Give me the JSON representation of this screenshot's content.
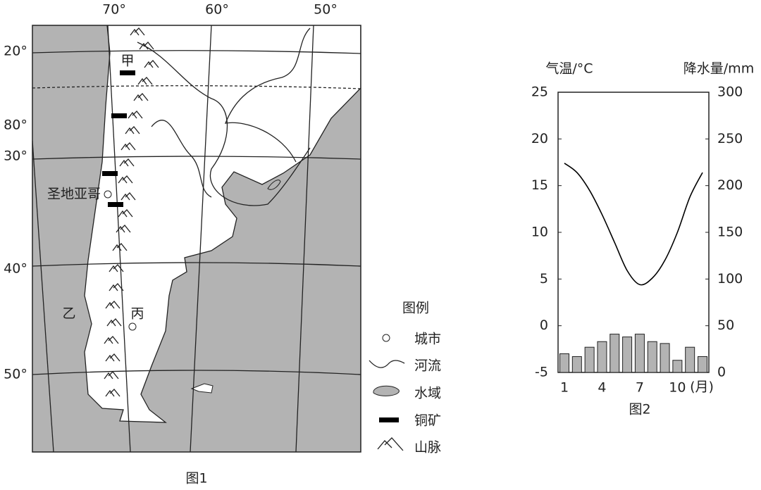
{
  "map": {
    "longitudes": [
      "70°",
      "60°",
      "50°"
    ],
    "latitudes": [
      "20°",
      "80°",
      "30°",
      "40°",
      "50°"
    ],
    "places": {
      "jia": "甲",
      "yi": "乙",
      "bing": "丙",
      "santiago": "圣地亚哥"
    },
    "legend": {
      "title": "图例",
      "items": [
        "城市",
        "河流",
        "水域",
        "铜矿",
        "山脉"
      ]
    },
    "caption": "图1"
  },
  "chart_data": {
    "type": "climate",
    "caption": "图2",
    "y_label": "气温/°C",
    "y2_label": "降水量/mm",
    "x_label": "(月)",
    "categories": [
      1,
      null,
      null,
      4,
      null,
      null,
      7,
      null,
      null,
      10,
      null,
      null
    ],
    "series": [
      {
        "type": "line",
        "color": "#000000",
        "values": [
          17.4,
          16.4,
          14.5,
          11.9,
          8.9,
          5.9,
          4.4,
          5.1,
          7.0,
          10.0,
          13.8,
          16.4
        ]
      },
      {
        "type": "bar",
        "axis": "y2",
        "color": "#b3b3b3",
        "values": [
          20,
          17,
          27,
          33,
          41,
          38,
          41,
          33,
          31,
          13,
          27,
          17
        ]
      }
    ],
    "ylim": [
      -5,
      25
    ],
    "yticks": [
      -5,
      0,
      5,
      10,
      15,
      20,
      25
    ],
    "y2lim": [
      0,
      300
    ],
    "y2ticks": [
      0,
      50,
      100,
      150,
      200,
      250,
      300
    ]
  }
}
